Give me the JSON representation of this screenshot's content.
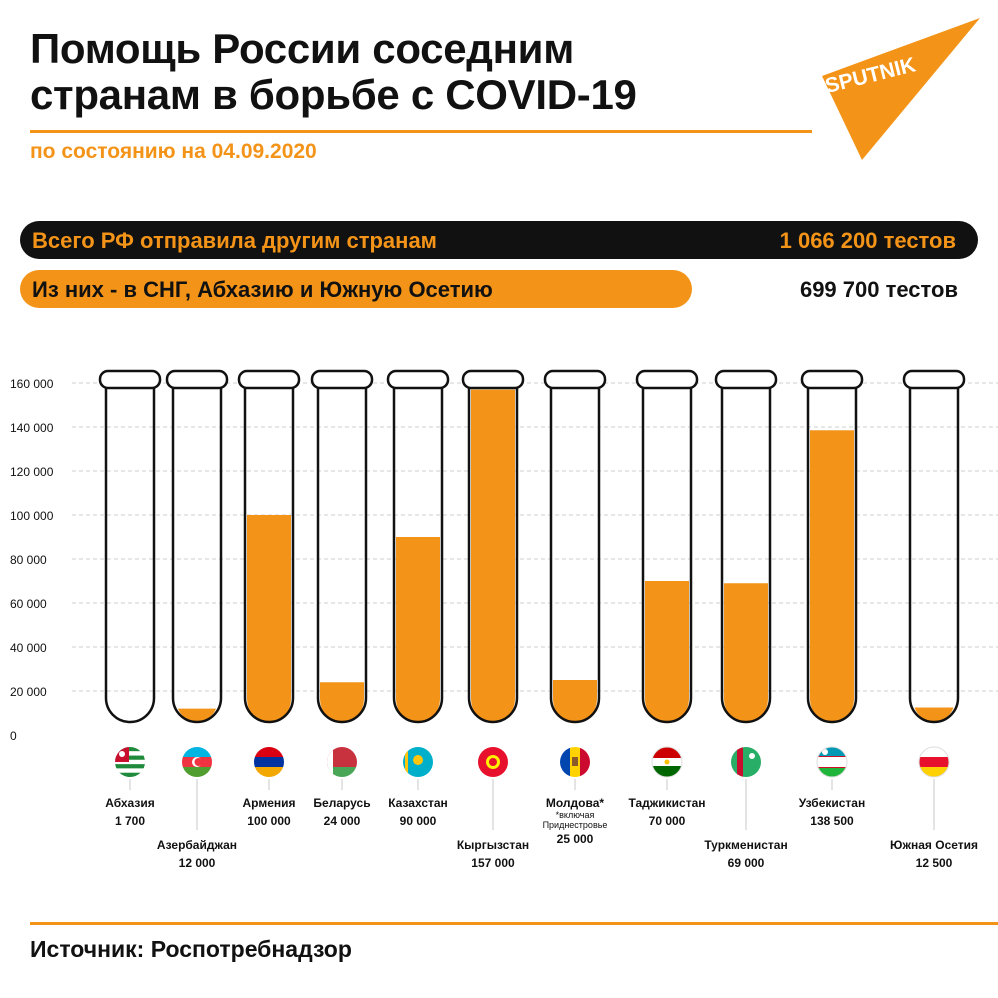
{
  "title_line1": "Помощь России соседним",
  "title_line2": "странам в борьбе с COVID-19",
  "subtitle": "по состоянию на 04.09.2020",
  "logo_text": "SPUTNIK",
  "total": {
    "label": "Всего РФ отправила другим странам",
    "value": "1 066 200 тестов"
  },
  "subset": {
    "label": "Из них - в СНГ, Абхазию и Южную Осетию",
    "value": "699 700 тестов"
  },
  "source": "Источник: Роспотребнадзор",
  "colors": {
    "accent": "#f39419",
    "dark": "#111111",
    "rule": "#cfcfcf"
  },
  "chart_data": {
    "type": "bar",
    "ylim": [
      0,
      160000
    ],
    "yticks": [
      0,
      20000,
      40000,
      60000,
      80000,
      100000,
      120000,
      140000,
      160000
    ],
    "ytick_labels": [
      "0",
      "20 000",
      "40 000",
      "60 000",
      "80 000",
      "100 000",
      "120 000",
      "140 000",
      "160 000"
    ],
    "categories": [
      "Абхазия",
      "Азербайджан",
      "Армения",
      "Беларусь",
      "Казахстан",
      "Кыргызстан",
      "Молдова*",
      "Таджикистан",
      "Туркменистан",
      "Узбекистан",
      "Южная Осетия"
    ],
    "values": [
      1700,
      12000,
      100000,
      24000,
      90000,
      157000,
      25000,
      70000,
      69000,
      138500,
      12500
    ],
    "value_labels": [
      "1 700",
      "12 000",
      "100 000",
      "24 000",
      "90 000",
      "157 000",
      "25 000",
      "70 000",
      "69 000",
      "138 500",
      "12 500"
    ],
    "notes": [
      "",
      "",
      "",
      "",
      "",
      "",
      "*включая Приднестровье",
      "",
      "",
      "",
      ""
    ],
    "flags": [
      "flag-abkhazia",
      "flag-azerbaijan",
      "flag-armenia",
      "flag-belarus",
      "flag-kazakhstan",
      "flag-kyrgyzstan",
      "flag-moldova",
      "flag-tajikistan",
      "flag-turkmenistan",
      "flag-uzbekistan",
      "flag-south-ossetia"
    ],
    "bar_color": "#f39419"
  }
}
